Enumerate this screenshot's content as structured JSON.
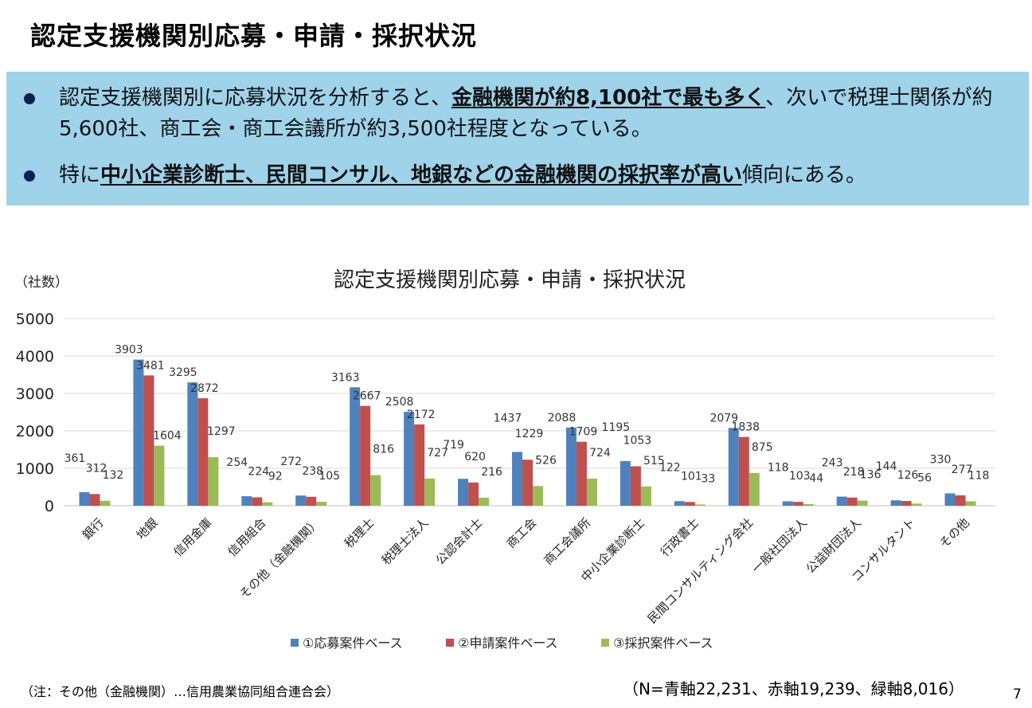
{
  "slide": {
    "title": "認定支援機関別応募・申請・採択状況",
    "bullets": [
      {
        "parts": [
          {
            "text": "認定支援機関別に応募状況を分析すると、",
            "em": false
          },
          {
            "text": "金融機関が約8,100社で最も多く",
            "em": true
          },
          {
            "text": "、次いで税理士関係が約5,600社、商工会・商工会議所が約3,500社程度となっている。",
            "em": false
          }
        ]
      },
      {
        "parts": [
          {
            "text": "特に",
            "em": false
          },
          {
            "text": "中小企業診断士、民間コンサル、地銀などの金融機関の採択率が高い",
            "em": true
          },
          {
            "text": "傾向にある。",
            "em": false
          }
        ]
      }
    ],
    "footnote": "（注：その他（金融機関）…信用農業協同組合連合会）",
    "total_note": "（N=青軸22,231、赤軸19,239、緑軸8,016）",
    "page_number": "7"
  },
  "chart_data": {
    "type": "bar",
    "title": "認定支援機関別応募・申請・採択状況",
    "ylabel": "（社数）",
    "xlabel": "",
    "ylim": [
      0,
      5000
    ],
    "yticks": [
      "0",
      "1000",
      "2000",
      "3000",
      "4000",
      "5000"
    ],
    "grid": true,
    "legend_position": "bottom",
    "categories": [
      "銀行",
      "地銀",
      "信用金庫",
      "信用組合",
      "その他（金融機関）",
      "税理士",
      "税理士法人",
      "公認会計士",
      "商工会",
      "商工会議所",
      "中小企業診断士",
      "行政書士",
      "民間コンサルティング会社",
      "一般社団法人",
      "公益財団法人",
      "コンサルタント",
      "その他"
    ],
    "series": [
      {
        "name": "①応募案件ベース",
        "color": "#4f81bd",
        "values": [
          361,
          3903,
          3295,
          254,
          272,
          3163,
          2508,
          719,
          1437,
          2088,
          1195,
          122,
          2079,
          118,
          243,
          144,
          330
        ]
      },
      {
        "name": "②申請案件ベース",
        "color": "#c0504d",
        "values": [
          312,
          3481,
          2872,
          224,
          238,
          2667,
          2172,
          620,
          1229,
          1709,
          1053,
          101,
          1838,
          103,
          218,
          126,
          277
        ]
      },
      {
        "name": "③採択案件ベース",
        "color": "#9bbb59",
        "values": [
          132,
          1604,
          1297,
          92,
          105,
          816,
          727,
          216,
          526,
          724,
          515,
          33,
          875,
          44,
          136,
          56,
          118
        ]
      }
    ]
  }
}
